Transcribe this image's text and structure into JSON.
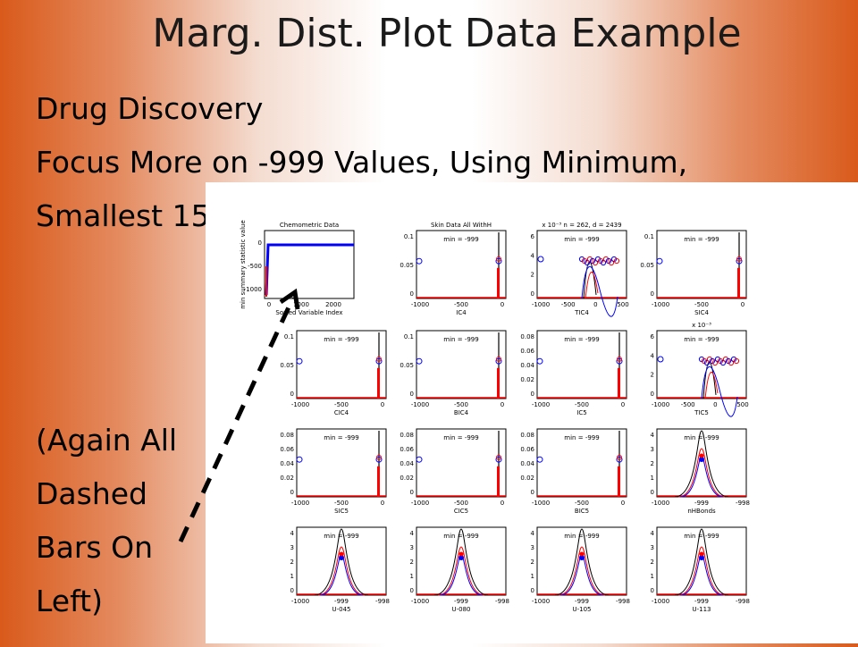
{
  "slide": {
    "title": "Marg. Dist. Plot Data Example",
    "line1": "Drug Discovery",
    "line2": "Focus More on -999 Values, Using Minimum,",
    "line3": "Smallest 15",
    "note": [
      "(Again All",
      "Dashed",
      "Bars On",
      "Left)"
    ]
  },
  "colors": {
    "accent": "#d95a1b",
    "blue": "#0000ff",
    "red": "#ff0000",
    "black": "#000000"
  },
  "figure": {
    "summary": {
      "title": "Chemometric Data",
      "ylabel": "min summary statistic value",
      "xlabel": "Sorted Variable Index",
      "yticks": [
        "0",
        "-500",
        "-1000"
      ],
      "xticks": [
        "0",
        "1000",
        "2000"
      ]
    },
    "panels": [
      {
        "title": "Skin Data All WithH",
        "label": "IC4",
        "type": "spike",
        "min": "min = -999",
        "yticks": [
          "0.1",
          "0.05",
          "0"
        ],
        "xticks": [
          "-1000",
          "-500",
          "0"
        ]
      },
      {
        "title": "x 10⁻³   n = 262, d = 2439",
        "label": "TIC4",
        "type": "cluster",
        "min": "min = -999",
        "yticks": [
          "6",
          "4",
          "2",
          "0"
        ],
        "xticks": [
          "-1000",
          "-500",
          "0",
          "500"
        ]
      },
      {
        "title": "",
        "label": "SIC4",
        "type": "spike",
        "min": "min = -999",
        "yticks": [
          "0.1",
          "0.05",
          "0"
        ],
        "xticks": [
          "-1000",
          "-500",
          "0"
        ]
      },
      {
        "title": "",
        "label": "CIC4",
        "type": "spike",
        "min": "min = -999",
        "yticks": [
          "0.1",
          "0.05",
          "0"
        ],
        "xticks": [
          "-1000",
          "-500",
          "0"
        ]
      },
      {
        "title": "",
        "label": "BIC4",
        "type": "spike",
        "min": "min = -999",
        "yticks": [
          "0.1",
          "0.05",
          "0"
        ],
        "xticks": [
          "-1000",
          "-500",
          "0"
        ]
      },
      {
        "title": "",
        "label": "IC5",
        "type": "spike",
        "min": "min = -999",
        "yticks": [
          "0.08",
          "0.06",
          "0.04",
          "0.02",
          "0"
        ],
        "xticks": [
          "-1000",
          "-500",
          "0"
        ]
      },
      {
        "title": "x 10⁻³",
        "label": "TIC5",
        "type": "cluster",
        "min": "min = -999",
        "yticks": [
          "6",
          "4",
          "2",
          "0"
        ],
        "xticks": [
          "-1000",
          "-500",
          "0",
          "500"
        ]
      },
      {
        "title": "",
        "label": "SIC5",
        "type": "spike",
        "min": "min = -999",
        "yticks": [
          "0.08",
          "0.06",
          "0.04",
          "0.02",
          "0"
        ],
        "xticks": [
          "-1000",
          "-500",
          "0"
        ]
      },
      {
        "title": "",
        "label": "CIC5",
        "type": "spike",
        "min": "min = -999",
        "yticks": [
          "0.08",
          "0.06",
          "0.04",
          "0.02",
          "0"
        ],
        "xticks": [
          "-1000",
          "-500",
          "0"
        ]
      },
      {
        "title": "",
        "label": "BIC5",
        "type": "spike",
        "min": "min = -999",
        "yticks": [
          "0.08",
          "0.06",
          "0.04",
          "0.02",
          "0"
        ],
        "xticks": [
          "-1000",
          "-500",
          "0"
        ]
      },
      {
        "title": "",
        "label": "nHBonds",
        "type": "bell",
        "min": "min = -999",
        "yticks": [
          "4",
          "3",
          "2",
          "1",
          "0"
        ],
        "xticks": [
          "-1000",
          "-999",
          "-998"
        ]
      },
      {
        "title": "",
        "label": "U-045",
        "type": "bell",
        "min": "min = -999",
        "yticks": [
          "4",
          "3",
          "2",
          "1",
          "0"
        ],
        "xticks": [
          "-1000",
          "-999",
          "-998"
        ]
      },
      {
        "title": "",
        "label": "U-080",
        "type": "bell",
        "min": "min = -999",
        "yticks": [
          "4",
          "3",
          "2",
          "1",
          "0"
        ],
        "xticks": [
          "-1000",
          "-999",
          "-998"
        ]
      },
      {
        "title": "",
        "label": "U-105",
        "type": "bell",
        "min": "min = -999",
        "yticks": [
          "4",
          "3",
          "2",
          "1",
          "0"
        ],
        "xticks": [
          "-1000",
          "-999",
          "-998"
        ]
      },
      {
        "title": "",
        "label": "U-113",
        "type": "bell",
        "min": "min = -999",
        "yticks": [
          "4",
          "3",
          "2",
          "1",
          "0"
        ],
        "xticks": [
          "-1000",
          "-999",
          "-998"
        ]
      }
    ]
  }
}
